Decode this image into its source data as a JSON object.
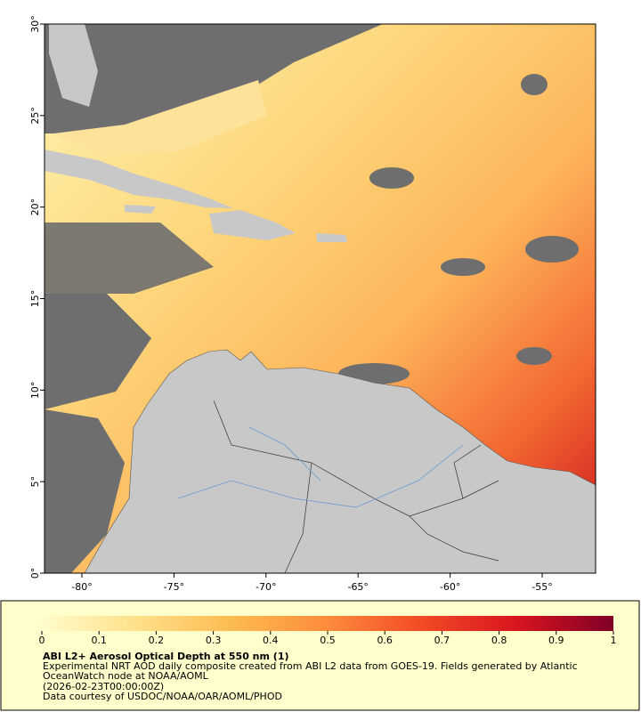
{
  "chart_data": {
    "type": "map",
    "xlim": [
      -82.03,
      -52.1
    ],
    "ylim": [
      0,
      30
    ],
    "xticks": [
      {
        "value": -80,
        "label": "-80°"
      },
      {
        "value": -75,
        "label": "-75°"
      },
      {
        "value": -70,
        "label": "-70°"
      },
      {
        "value": -65,
        "label": "-65°"
      },
      {
        "value": -60,
        "label": "-60°"
      },
      {
        "value": -55,
        "label": "-55°"
      }
    ],
    "yticks": [
      {
        "value": 0,
        "label": "0°"
      },
      {
        "value": 5,
        "label": "5°"
      },
      {
        "value": 10,
        "label": "10°"
      },
      {
        "value": 15,
        "label": "15°"
      },
      {
        "value": 20,
        "label": "20°"
      },
      {
        "value": 25,
        "label": "25°"
      },
      {
        "value": 30,
        "label": "30°"
      }
    ],
    "colorbar": {
      "lim": [
        0,
        1
      ],
      "ticks": [
        0,
        0.1,
        0.2,
        0.3,
        0.4,
        0.5,
        0.6,
        0.7,
        0.8,
        0.9,
        1
      ],
      "colors": [
        "#fffccc",
        "#ffe08a",
        "#fdbb50",
        "#fd8b3c",
        "#f24a25",
        "#d7141f",
        "#800026"
      ]
    },
    "title": "ABI L2+ Aerosol Optical Depth at 550 nm (1)",
    "description": [
      "Experimental NRT AOD daily composite created from ABI L2 data from GOES-19. Fields generated by Atlantic",
      "OceanWatch node at NOAA/AOML",
      "(2026-02-23T00:00:00Z)",
      "Data courtesy of USDOC/NOAA/OAR/AOML/PHOD"
    ]
  }
}
